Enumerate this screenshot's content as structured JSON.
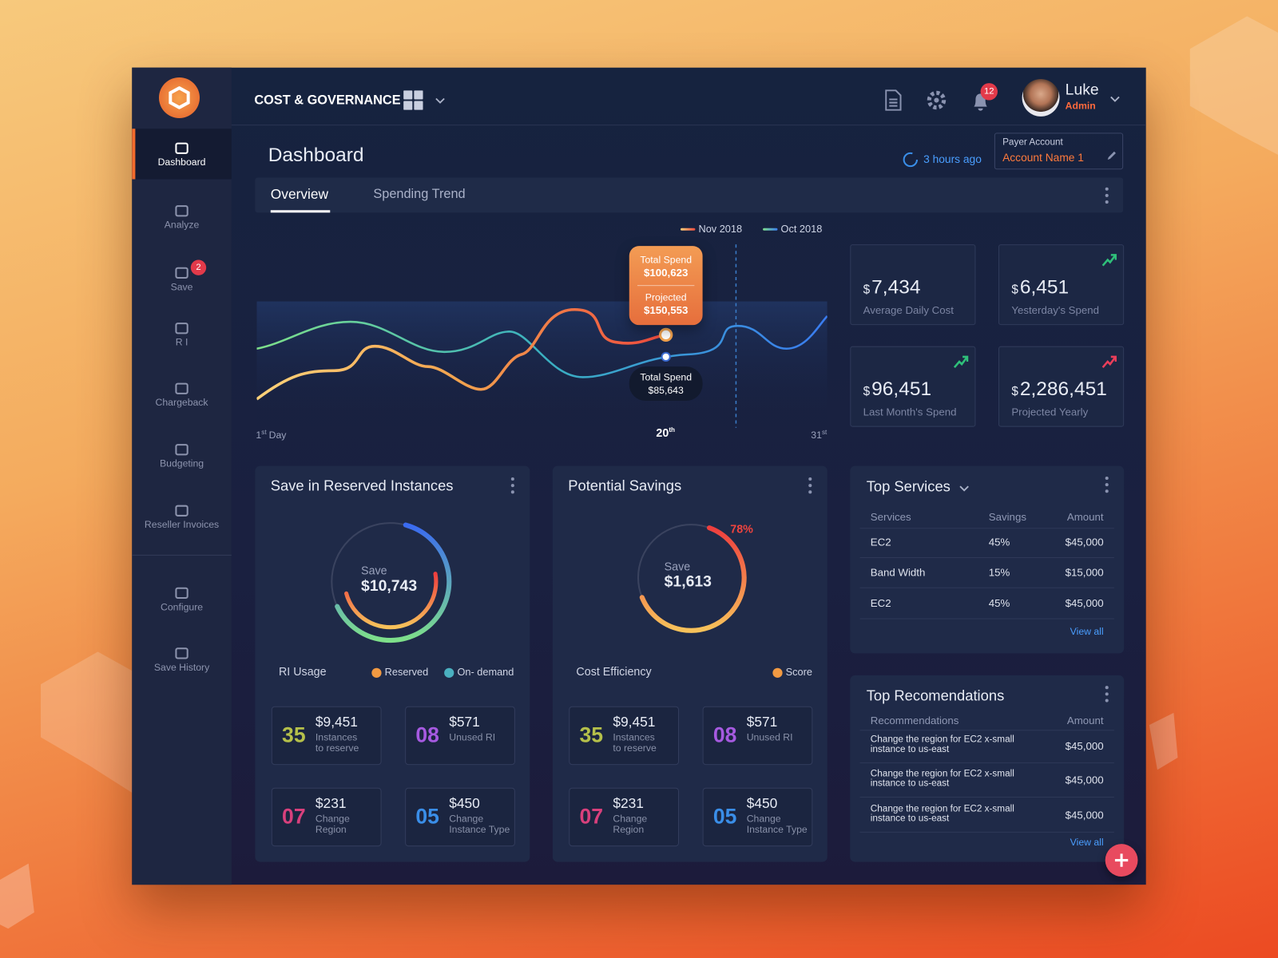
{
  "sidebar": {
    "items": [
      {
        "label": "Dashboard"
      },
      {
        "label": "Analyze"
      },
      {
        "label": "Save",
        "badge": "2"
      },
      {
        "label": "R I"
      },
      {
        "label": "Chargeback"
      },
      {
        "label": "Budgeting"
      },
      {
        "label": "Reseller Invoices"
      },
      {
        "label": "Configure"
      },
      {
        "label": "Save History"
      }
    ]
  },
  "header": {
    "title": "COST & GOVERNANCE",
    "notifications": "12",
    "user": {
      "name": "Luke",
      "role": "Admin"
    }
  },
  "page": {
    "title": "Dashboard",
    "updated": "3 hours ago",
    "account": {
      "label": "Payer Account",
      "name": "Account Name 1"
    }
  },
  "tabs": [
    "Overview",
    "Spending Trend"
  ],
  "spend_chart": {
    "legend": [
      "Nov 2018",
      "Oct 2018"
    ],
    "x_labels": [
      {
        "number": "1",
        "suffix": "st",
        "word": "Day"
      },
      {
        "number": "20",
        "suffix": "th"
      },
      {
        "number": "31",
        "suffix": "st"
      }
    ],
    "tooltips": [
      {
        "label": "Total Spend",
        "value": "$100,623",
        "projected_label": "Projected",
        "projected_value": "$150,553"
      },
      {
        "label": "Total Spend",
        "value": "$85,643"
      }
    ]
  },
  "stats": [
    {
      "currency": "$",
      "amount": "7,434",
      "label": "Average Daily Cost"
    },
    {
      "currency": "$",
      "amount": "6,451",
      "label": "Yesterday's Spend"
    },
    {
      "currency": "$",
      "amount": "96,451",
      "label": "Last Month's Spend"
    },
    {
      "currency": "$",
      "amount": "2,286,451",
      "label": "Projected Yearly"
    }
  ],
  "panels": [
    {
      "title": "Save in Reserved Instances",
      "center_label": "Save",
      "center_value": "$10,743",
      "legend_title": "RI Usage",
      "legend": [
        "Reserved",
        "On- demand"
      ],
      "tiles": [
        {
          "count": "35",
          "amount": "$9,451",
          "label": "Instances to reserve"
        },
        {
          "count": "08",
          "amount": "$571",
          "label": "Unused RI"
        },
        {
          "count": "07",
          "amount": "$231",
          "label": "Change Region"
        },
        {
          "count": "05",
          "amount": "$450",
          "label": "Change Instance Type"
        }
      ]
    },
    {
      "title": "Potential Savings",
      "center_label": "Save",
      "center_value": "$1,613",
      "percent": "78%",
      "legend_title": "Cost Efficiency",
      "legend": [
        "Score"
      ],
      "tiles": [
        {
          "count": "35",
          "amount": "$9,451",
          "label": "Instances to reserve"
        },
        {
          "count": "08",
          "amount": "$571",
          "label": "Unused RI"
        },
        {
          "count": "07",
          "amount": "$231",
          "label": "Change Region"
        },
        {
          "count": "05",
          "amount": "$450",
          "label": "Change Instance Type"
        }
      ]
    }
  ],
  "top_services": {
    "title": "Top Services",
    "columns": [
      "Services",
      "Savings",
      "Amount"
    ],
    "rows": [
      [
        "EC2",
        "45%",
        "$45,000"
      ],
      [
        "Band Width",
        "15%",
        "$15,000"
      ],
      [
        "EC2",
        "45%",
        "$45,000"
      ]
    ],
    "link": "View all"
  },
  "top_recommendations": {
    "title": "Top Recomendations",
    "columns": [
      "Recommendations",
      "Amount"
    ],
    "rows": [
      [
        "Change the region for EC2 x-small instance to us-east",
        "$45,000"
      ],
      [
        "Change the region for EC2 x-small instance to us-east",
        "$45,000"
      ],
      [
        "Change the region for EC2 x-small instance to us-east",
        "$45,000"
      ]
    ],
    "link": "View all"
  }
}
